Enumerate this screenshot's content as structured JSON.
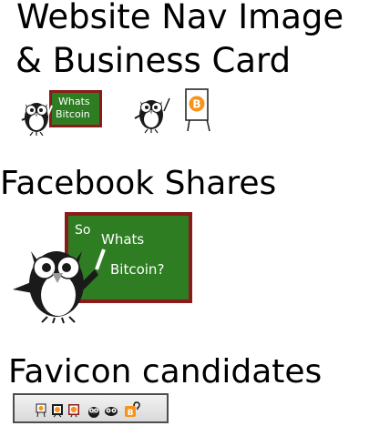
{
  "sections": {
    "nav": {
      "title_line1": "Website Nav Image",
      "title_line2": "& Business Card",
      "card1_line1": "Whats",
      "card1_line2": "Bitcoin",
      "card2_sign": "B"
    },
    "facebook": {
      "title": "Facebook Shares",
      "board_line1": "So",
      "board_line2": "Whats",
      "board_line3": "Bitcoin?"
    },
    "favicon": {
      "title": "Favicon candidates"
    }
  },
  "colors": {
    "board_green": "#2e7d23",
    "board_frame": "#8b1a1a",
    "bitcoin_orange": "#f7931a",
    "owl_black": "#1a1a1a",
    "owl_beak": "#9a9a9a"
  },
  "icons": [
    "owl-icon",
    "chalkboard-icon",
    "bitcoin-easel-icon",
    "chalk-icon"
  ]
}
